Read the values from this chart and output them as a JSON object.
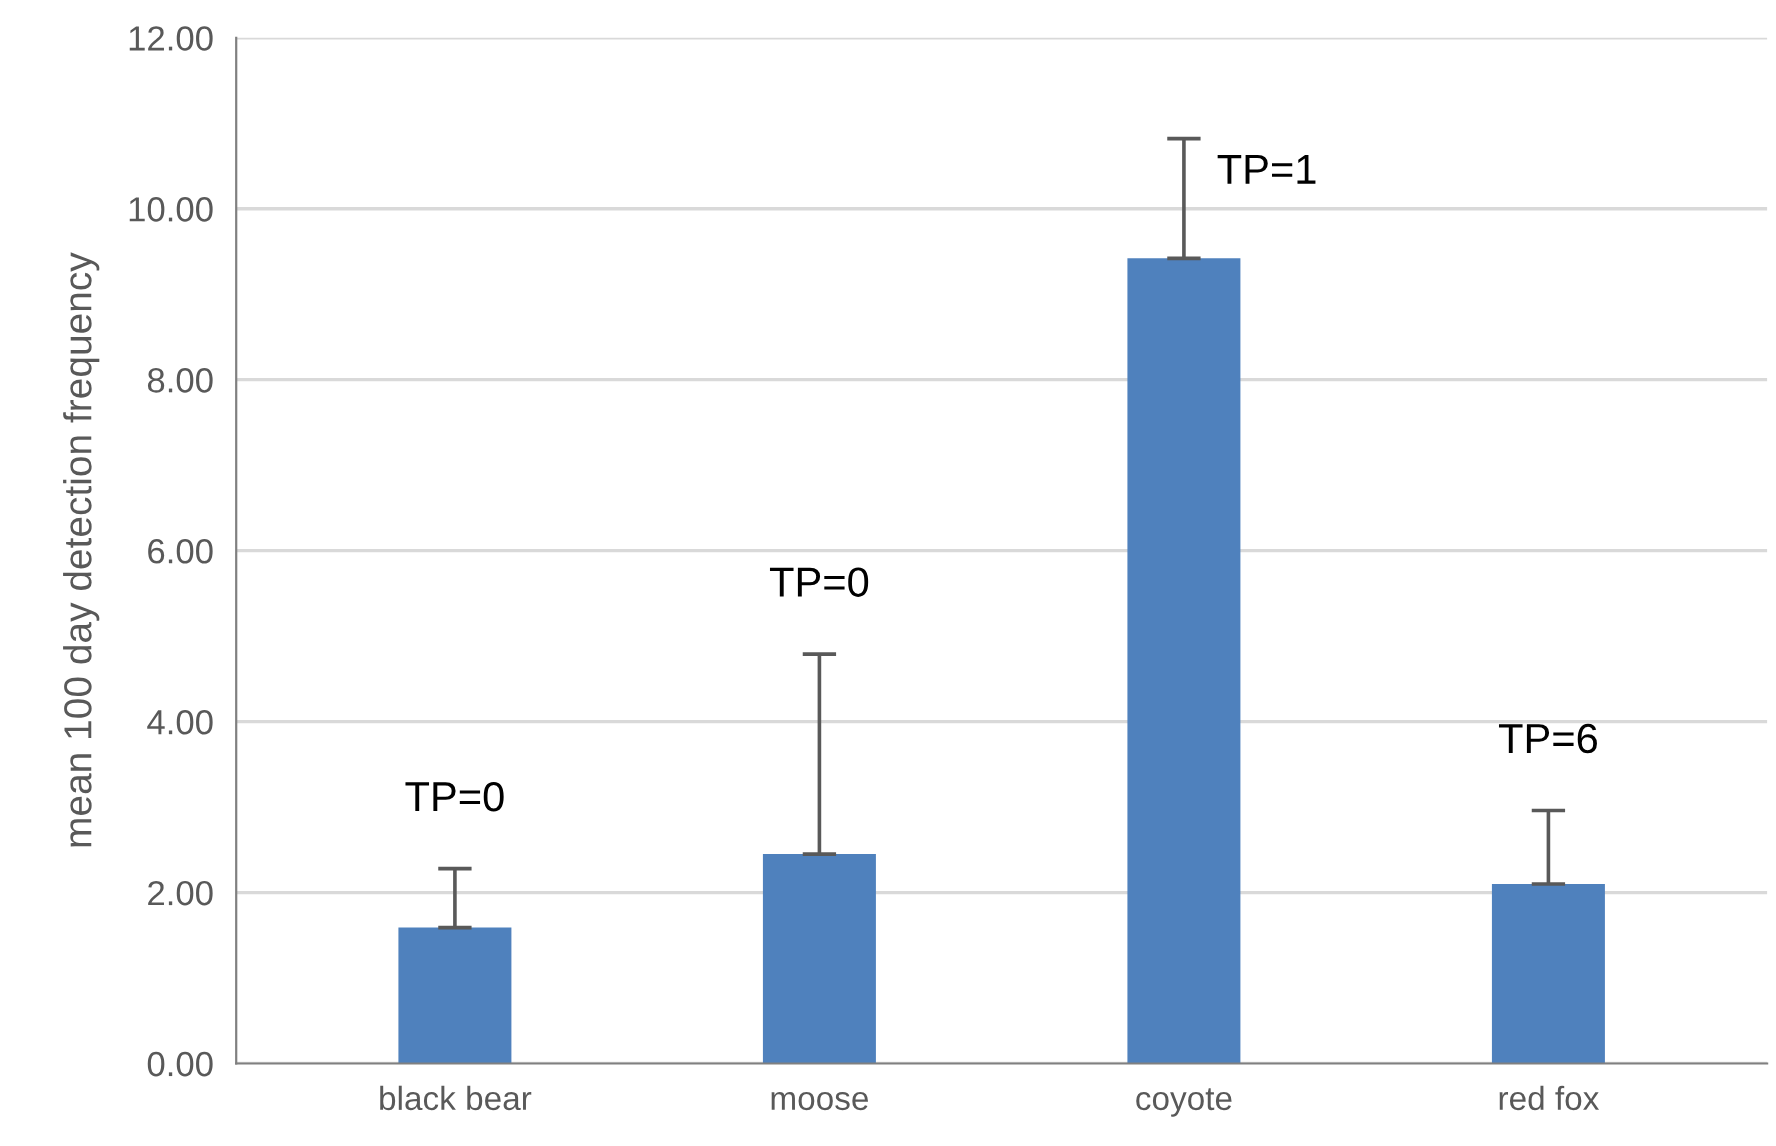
{
  "chart_data": {
    "type": "bar",
    "ylabel": "mean 100 day detection frequency",
    "categories": [
      "black bear",
      "moose",
      "coyote",
      "red fox"
    ],
    "values": [
      1.59,
      2.45,
      9.42,
      2.1
    ],
    "errors": [
      [
        1.59,
        2.28
      ],
      [
        2.45,
        4.79
      ],
      [
        9.42,
        10.82
      ],
      [
        2.1,
        2.96
      ]
    ],
    "color": "#4f81bd",
    "ylim": [
      0,
      12
    ],
    "yticks": [
      {
        "value": 0,
        "label": "0.00"
      },
      {
        "value": 2,
        "label": "2.00"
      },
      {
        "value": 4,
        "label": "4.00"
      },
      {
        "value": 6,
        "label": "6.00"
      },
      {
        "value": 8,
        "label": "8.00"
      },
      {
        "value": 10,
        "label": "10.00"
      },
      {
        "value": 12,
        "label": "12.00"
      }
    ],
    "grid": "y",
    "annotations": [
      "TP=0",
      "TP=0",
      "TP=1",
      "TP=6"
    ]
  }
}
